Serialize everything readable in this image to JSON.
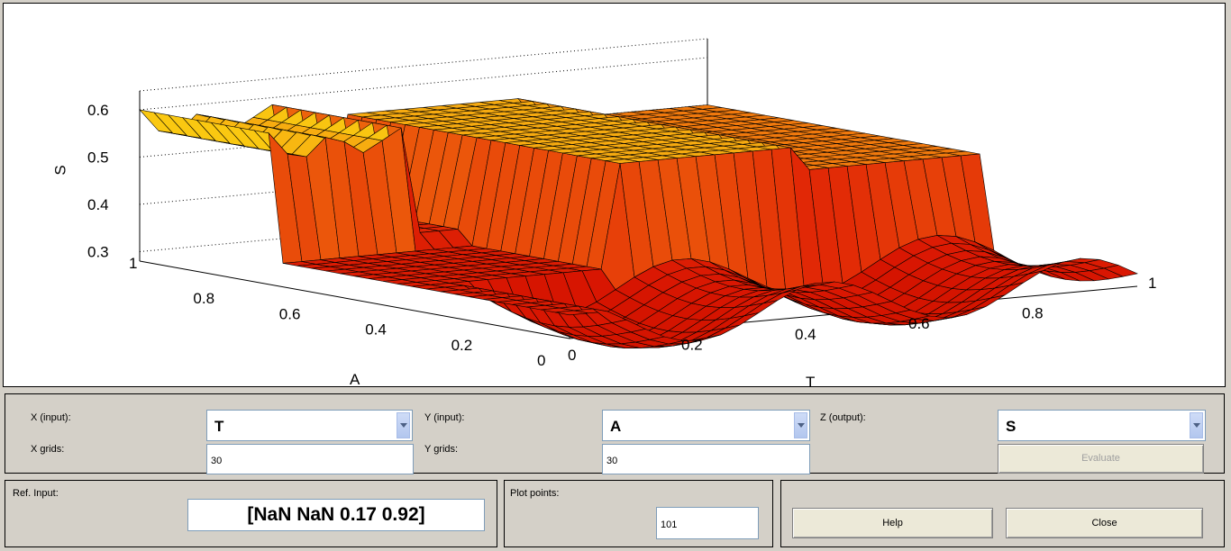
{
  "plot": {
    "z_label": "S",
    "y_label": "A",
    "x_label": "T",
    "z_ticks": [
      "0.6",
      "0.5",
      "0.4",
      "0.3"
    ],
    "a_ticks": [
      "1",
      "0.8",
      "0.6",
      "0.4",
      "0.2",
      "0"
    ],
    "t_ticks": [
      "0",
      "0.2",
      "0.4",
      "0.6",
      "0.8",
      "1"
    ],
    "colors": {
      "low": "#d40000",
      "mid": "#ff6a00",
      "high": "#ffff40"
    }
  },
  "controls": {
    "x_input_label": "X (input):",
    "x_input_value": "T",
    "y_input_label": "Y (input):",
    "y_input_value": "A",
    "z_output_label": "Z (output):",
    "z_output_value": "S",
    "x_grids_label": "X grids:",
    "x_grids_value": "30",
    "y_grids_label": "Y grids:",
    "y_grids_value": "30",
    "evaluate_label": "Evaluate"
  },
  "bottom": {
    "ref_input_label": "Ref. Input:",
    "ref_input_value": "[NaN NaN 0.17 0.92]",
    "plot_points_label": "Plot points:",
    "plot_points_value": "101",
    "help_label": "Help",
    "close_label": "Close"
  }
}
